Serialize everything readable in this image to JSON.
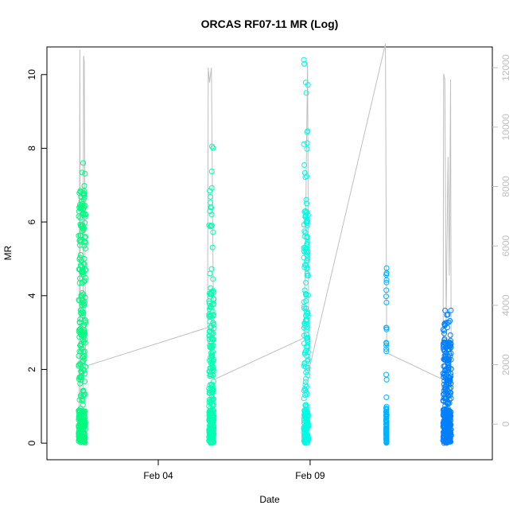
{
  "chart_data": {
    "type": "scatter",
    "title": "ORCAS RF07-11 MR (Log)",
    "xlabel": "Date",
    "ylabel": "MR",
    "x_ticks": [
      {
        "date": "2016-02-04",
        "label": "Feb 04"
      },
      {
        "date": "2016-02-09",
        "label": "Feb 09"
      }
    ],
    "xlim": [
      "2016-01-31T08:00",
      "2016-02-15T00:00"
    ],
    "ylim": [
      -0.45,
      10.75
    ],
    "y_ticks": [
      0,
      2,
      4,
      6,
      8,
      10
    ],
    "y2_ticks": [
      0,
      2000,
      4000,
      6000,
      8000,
      10000,
      12000
    ],
    "y2lim": [
      -1200,
      12700
    ],
    "y2_color": "#bfbfbf",
    "grid": false,
    "legend": "none",
    "series": [
      {
        "color": "#00FA7F",
        "date": "2016-02-01",
        "t_start": "2016-02-01T09:00",
        "t_end": "2016-02-01T14:30",
        "mr_max": 7.6,
        "mr_dense": 7.0
      },
      {
        "color": "#00FFB0",
        "date": "2016-02-05",
        "t_start": "2016-02-05T16:00",
        "t_end": "2016-02-05T20:00",
        "mr_max": 8.05,
        "mr_dense": 4.2
      },
      {
        "color": "#00FAE4",
        "date": "2016-02-08",
        "t_start": "2016-02-08T19:00",
        "t_end": "2016-02-08T22:30",
        "mr_max": 10.4,
        "mr_dense": 6.3
      },
      {
        "color": "#00B2FF",
        "date": "2016-02-11",
        "t_start": "2016-02-11T12:00",
        "t_end": "2016-02-11T12:30",
        "mr_max": 4.75,
        "mr_dense": 1.0
      },
      {
        "color": "#0080FF",
        "date": "2016-02-13",
        "t_start": "2016-02-13T09:00",
        "t_end": "2016-02-13T15:30",
        "mr_max": 3.6,
        "mr_dense": 2.8
      }
    ],
    "altitude_line": {
      "color": "#bfbfbf",
      "points": [
        [
          "2016-02-01T09:30",
          200
        ],
        [
          "2016-02-01T10:00",
          12600
        ],
        [
          "2016-02-01T10:30",
          800
        ],
        [
          "2016-02-01T12:30",
          1200
        ],
        [
          "2016-02-01T13:00",
          12400
        ],
        [
          "2016-02-01T13:30",
          12200
        ],
        [
          "2016-02-01T14:30",
          1950
        ],
        [
          "2016-02-05T15:00",
          3250
        ],
        [
          "2016-02-05T15:30",
          12000
        ],
        [
          "2016-02-05T16:30",
          11500
        ],
        [
          "2016-02-05T18:00",
          12000
        ],
        [
          "2016-02-05T20:00",
          1500
        ],
        [
          "2016-02-08T19:00",
          2900
        ],
        [
          "2016-02-08T20:00",
          5000
        ],
        [
          "2016-02-08T22:00",
          12200
        ],
        [
          "2016-02-08T23:00",
          1800
        ],
        [
          "2016-02-11T11:30",
          12800
        ],
        [
          "2016-02-11T12:30",
          2400
        ],
        [
          "2016-02-13T09:00",
          1500
        ],
        [
          "2016-02-13T09:30",
          11800
        ],
        [
          "2016-02-13T10:30",
          11600
        ],
        [
          "2016-02-13T11:30",
          3500
        ],
        [
          "2016-02-13T13:00",
          9000
        ],
        [
          "2016-02-13T14:00",
          5000
        ],
        [
          "2016-02-13T15:00",
          11600
        ],
        [
          "2016-02-13T15:30",
          1000
        ]
      ]
    }
  }
}
